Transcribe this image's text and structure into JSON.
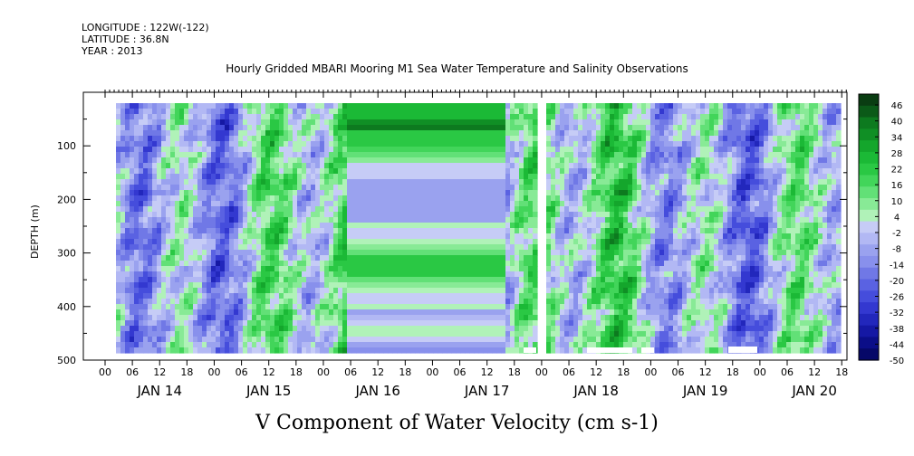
{
  "header": {
    "longitude": "LONGITUDE : 122W(-122)",
    "latitude": "LATITUDE : 36.8N",
    "year": "YEAR : 2013",
    "title": "Hourly Gridded MBARI Mooring M1 Sea Water Temperature and Salinity Observations"
  },
  "footer": {
    "variable": "V Component of Water Velocity (cm s-1)"
  },
  "chart_data": {
    "type": "heatmap",
    "title": "Hourly Gridded MBARI Mooring M1 Sea Water Temperature and Salinity Observations",
    "xlabel": "",
    "ylabel": "DEPTH (m)",
    "ylim": [
      500,
      0
    ],
    "yticks": [
      100,
      200,
      300,
      400,
      500
    ],
    "yticks_labels": [
      "100",
      "200",
      "300",
      "400",
      "500"
    ],
    "hour_ticks": [
      "00",
      "06",
      "12",
      "18",
      "00",
      "06",
      "12",
      "18",
      "00",
      "06",
      "12",
      "18",
      "00",
      "06",
      "12",
      "18",
      "00",
      "06",
      "12",
      "18",
      "00",
      "06",
      "12",
      "18",
      "00",
      "06",
      "12",
      "18"
    ],
    "day_labels": [
      "JAN 14",
      "JAN 15",
      "JAN 16",
      "JAN 17",
      "JAN 18",
      "JAN 19",
      "JAN 20"
    ],
    "colorbar": {
      "labels": [
        "46",
        "40",
        "34",
        "28",
        "22",
        "16",
        "10",
        "4",
        "-2",
        "-8",
        "-14",
        "-20",
        "-26",
        "-32",
        "-38",
        "-44",
        "-50"
      ],
      "range": [
        -50,
        50
      ],
      "colors_high_to_low": [
        "#0a3d12",
        "#0b5a18",
        "#0d7a1f",
        "#108f25",
        "#14a62c",
        "#1bb936",
        "#2ac844",
        "#42d55a",
        "#62e077",
        "#88ea96",
        "#b0f2b8",
        "#c6ccf6",
        "#b2b8f4",
        "#9aa2ef",
        "#8890ec",
        "#7078e6",
        "#5a62e2",
        "#454ddc",
        "#3338d0",
        "#2227bc",
        "#1518a4",
        "#0b0e88",
        "#060868"
      ]
    }
  }
}
